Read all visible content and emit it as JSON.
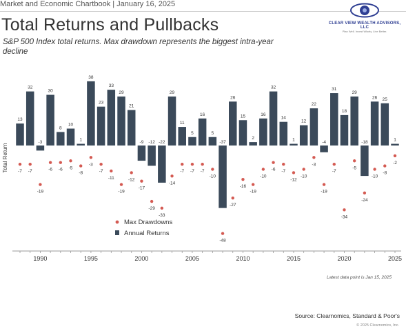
{
  "header": {
    "line": "Market and Economic Chartbook | January 16, 2025",
    "title": "Total Returns and Pullbacks",
    "subtitle": "S&P 500 Index total returns. Max drawdown represents the biggest intra-year decline"
  },
  "logo": {
    "name": "CLEAR VIEW WEALTH ADVISORS, LLC",
    "tagline": "Plan Well. Invest Wisely. Live Better."
  },
  "chart_data": {
    "type": "bar",
    "ylabel": "Total Return",
    "x": [
      1988,
      1989,
      1990,
      1991,
      1992,
      1993,
      1994,
      1995,
      1996,
      1997,
      1998,
      1999,
      2000,
      2001,
      2002,
      2003,
      2004,
      2005,
      2006,
      2007,
      2008,
      2009,
      2010,
      2011,
      2012,
      2013,
      2014,
      2015,
      2016,
      2017,
      2018,
      2019,
      2020,
      2021,
      2022,
      2023,
      2024,
      2025
    ],
    "x_ticks": [
      1990,
      1995,
      2000,
      2005,
      2010,
      2015,
      2020,
      2025
    ],
    "series": [
      {
        "name": "Annual Returns",
        "color": "#3b4a5a",
        "values": [
          13,
          32,
          -3,
          30,
          8,
          10,
          1,
          38,
          23,
          33,
          29,
          21,
          -9,
          -12,
          -22,
          29,
          11,
          5,
          16,
          5,
          -37,
          26,
          15,
          2,
          16,
          32,
          14,
          1,
          12,
          22,
          -4,
          31,
          18,
          29,
          -18,
          26,
          25,
          1
        ]
      },
      {
        "name": "Max Drawdowns",
        "color": "#d45a52",
        "values": [
          -7,
          -7,
          -19,
          -6,
          -6,
          -5,
          -8,
          -3,
          -7,
          -11,
          -19,
          -12,
          -17,
          -29,
          -33,
          -14,
          -7,
          -7,
          -7,
          -10,
          -48,
          -27,
          -16,
          -19,
          -10,
          -6,
          -7,
          -12,
          -10,
          -3,
          -19,
          -7,
          -34,
          -5,
          -24,
          -10,
          -8,
          -2
        ]
      }
    ],
    "ylim": [
      -52,
      40
    ],
    "legend": "bottom-left"
  },
  "footer": {
    "note": "Latest data point is Jan 15, 2025",
    "source": "Source: Clearnomics, Standard & Poor's",
    "copyright": "© 2025 Clearnomics, Inc."
  }
}
